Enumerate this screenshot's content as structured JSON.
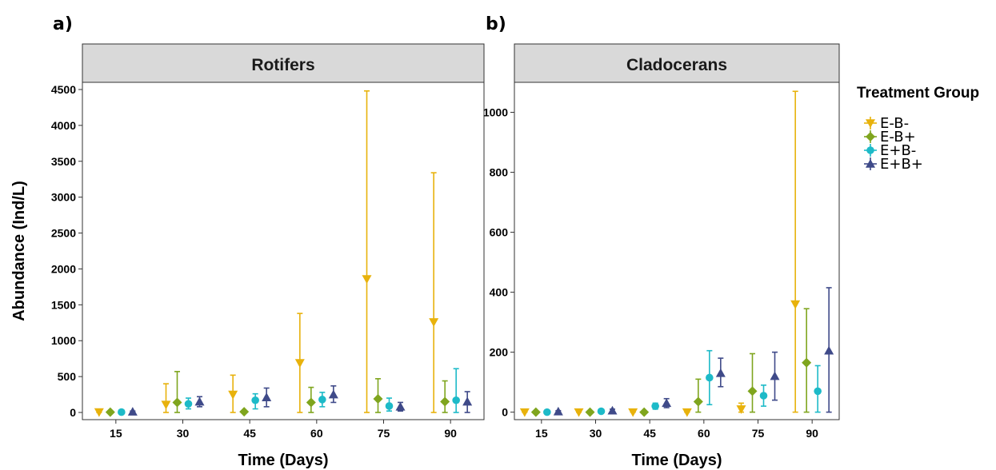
{
  "chart_data": [
    {
      "type": "scatter",
      "panel_label": "a)",
      "title": "Rotifers",
      "xlabel": "Time (Days)",
      "ylabel": "Abundance (Ind/L)",
      "categories": [
        "15",
        "30",
        "45",
        "60",
        "75",
        "90"
      ],
      "ylim": [
        -100,
        4600
      ],
      "yticks": [
        0,
        500,
        1000,
        1500,
        2000,
        2500,
        3000,
        3500,
        4000,
        4500
      ],
      "grid": false,
      "series": [
        {
          "name": "E-B-",
          "values": [
            5,
            110,
            250,
            690,
            1860,
            1260
          ],
          "lower": [
            0,
            0,
            0,
            0,
            0,
            0
          ],
          "upper": [
            20,
            400,
            520,
            1380,
            4480,
            3340
          ]
        },
        {
          "name": "E-B+",
          "values": [
            5,
            140,
            10,
            140,
            190,
            150
          ],
          "lower": [
            0,
            0,
            0,
            0,
            0,
            0
          ],
          "upper": [
            15,
            570,
            20,
            350,
            470,
            440
          ]
        },
        {
          "name": "E+B-",
          "values": [
            5,
            120,
            170,
            180,
            90,
            170
          ],
          "lower": [
            0,
            50,
            50,
            80,
            20,
            0
          ],
          "upper": [
            15,
            200,
            260,
            280,
            200,
            610
          ]
        },
        {
          "name": "E+B+",
          "values": [
            10,
            150,
            210,
            250,
            80,
            150
          ],
          "lower": [
            0,
            80,
            80,
            140,
            20,
            0
          ],
          "upper": [
            20,
            220,
            340,
            370,
            140,
            290
          ]
        }
      ]
    },
    {
      "type": "scatter",
      "panel_label": "b)",
      "title": "Cladocerans",
      "xlabel": "Time (Days)",
      "ylabel": "",
      "categories": [
        "15",
        "30",
        "45",
        "60",
        "75",
        "90"
      ],
      "ylim": [
        -25,
        1100
      ],
      "yticks": [
        0,
        200,
        400,
        600,
        800,
        1000
      ],
      "grid": false,
      "series": [
        {
          "name": "E-B-",
          "values": [
            0,
            0,
            0,
            0,
            10,
            360
          ],
          "lower": [
            0,
            0,
            0,
            0,
            0,
            0
          ],
          "upper": [
            0,
            0,
            0,
            0,
            30,
            1070
          ]
        },
        {
          "name": "E-B+",
          "values": [
            0,
            0,
            0,
            35,
            70,
            165
          ],
          "lower": [
            0,
            0,
            0,
            0,
            0,
            0
          ],
          "upper": [
            0,
            0,
            0,
            110,
            195,
            345
          ]
        },
        {
          "name": "E+B-",
          "values": [
            0,
            3,
            20,
            115,
            55,
            70
          ],
          "lower": [
            0,
            0,
            10,
            25,
            20,
            0
          ],
          "upper": [
            0,
            5,
            30,
            205,
            90,
            155
          ]
        },
        {
          "name": "E+B+",
          "values": [
            2,
            5,
            30,
            130,
            120,
            205
          ],
          "lower": [
            0,
            0,
            15,
            85,
            40,
            0
          ],
          "upper": [
            5,
            10,
            45,
            180,
            200,
            415
          ]
        }
      ]
    }
  ],
  "legend": {
    "title": "Treatment Group",
    "placement": "right",
    "entries": [
      {
        "label": "E-B-",
        "color": "#E8B20C",
        "shape": "triangle-down"
      },
      {
        "label": "E-B+",
        "color": "#7FA51E",
        "shape": "diamond"
      },
      {
        "label": "E+B-",
        "color": "#1DBAC8",
        "shape": "circle"
      },
      {
        "label": "E+B+",
        "color": "#3F4A89",
        "shape": "triangle-up"
      }
    ]
  }
}
